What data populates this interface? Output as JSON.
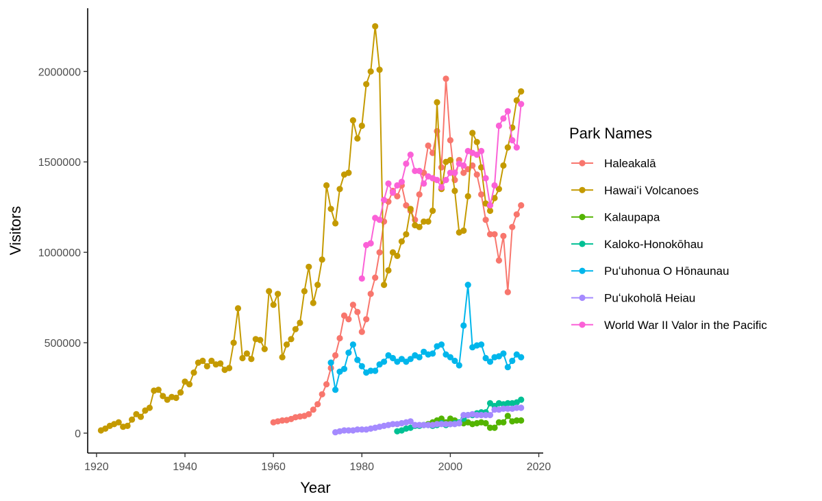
{
  "chart_data": {
    "type": "line",
    "xlabel": "Year",
    "ylabel": "Visitors",
    "xlim": [
      1918,
      2021
    ],
    "ylim": [
      -110000,
      2350000
    ],
    "xticks": [
      "1920",
      "1940",
      "1960",
      "1980",
      "2000",
      "2020"
    ],
    "yticks": [
      "0",
      "500000",
      "1000000",
      "1500000",
      "2000000"
    ],
    "grid": false,
    "legend": {
      "title": "Park Names",
      "position": "right",
      "entries": [
        "Haleakalā",
        "Hawaiʻi Volcanoes",
        "Kalaupapa",
        "Kaloko-Honokōhau",
        "Puʻuhonua O Hōnaunau",
        "Puʻukoholā Heiau",
        "World War II Valor in the Pacific"
      ]
    },
    "series": [
      {
        "name": "Haleakalā",
        "color": "#F8766D",
        "x": [
          1960,
          1961,
          1962,
          1963,
          1964,
          1965,
          1966,
          1967,
          1968,
          1969,
          1970,
          1971,
          1972,
          1973,
          1974,
          1975,
          1976,
          1977,
          1978,
          1979,
          1980,
          1981,
          1982,
          1983,
          1984,
          1985,
          1986,
          1987,
          1988,
          1989,
          1990,
          1991,
          1992,
          1993,
          1994,
          1995,
          1996,
          1997,
          1998,
          1999,
          2000,
          2001,
          2002,
          2003,
          2004,
          2005,
          2006,
          2007,
          2008,
          2009,
          2010,
          2011,
          2012,
          2013,
          2014,
          2015,
          2016
        ],
        "y": [
          60000,
          65000,
          70000,
          72000,
          78000,
          88000,
          92000,
          95000,
          105000,
          130000,
          160000,
          215000,
          270000,
          360000,
          430000,
          525000,
          650000,
          630000,
          710000,
          670000,
          560000,
          630000,
          770000,
          860000,
          1000000,
          1170000,
          1280000,
          1340000,
          1310000,
          1370000,
          1260000,
          1230000,
          1180000,
          1320000,
          1440000,
          1590000,
          1550000,
          1670000,
          1470000,
          1960000,
          1620000,
          1400000,
          1510000,
          1440000,
          1460000,
          1480000,
          1430000,
          1320000,
          1180000,
          1100000,
          1100000,
          955000,
          1090000,
          780000,
          1140000,
          1210000,
          1260000
        ]
      },
      {
        "name": "Hawaiʻi Volcanoes",
        "color": "#C49A00",
        "x": [
          1921,
          1922,
          1923,
          1924,
          1925,
          1926,
          1927,
          1928,
          1929,
          1930,
          1931,
          1932,
          1933,
          1934,
          1935,
          1936,
          1937,
          1938,
          1939,
          1940,
          1941,
          1942,
          1943,
          1944,
          1945,
          1946,
          1947,
          1948,
          1949,
          1950,
          1951,
          1952,
          1953,
          1954,
          1955,
          1956,
          1957,
          1958,
          1959,
          1960,
          1961,
          1962,
          1963,
          1964,
          1965,
          1966,
          1967,
          1968,
          1969,
          1970,
          1971,
          1972,
          1973,
          1974,
          1975,
          1976,
          1977,
          1978,
          1979,
          1980,
          1981,
          1982,
          1983,
          1984,
          1985,
          1986,
          1987,
          1988,
          1989,
          1990,
          1991,
          1992,
          1993,
          1994,
          1995,
          1996,
          1997,
          1998,
          1999,
          2000,
          2001,
          2002,
          2003,
          2004,
          2005,
          2006,
          2007,
          2008,
          2009,
          2010,
          2011,
          2012,
          2013,
          2014,
          2015,
          2016
        ],
        "y": [
          15000,
          25000,
          40000,
          50000,
          60000,
          35000,
          40000,
          75000,
          105000,
          90000,
          125000,
          140000,
          235000,
          240000,
          205000,
          185000,
          200000,
          195000,
          225000,
          285000,
          270000,
          335000,
          390000,
          400000,
          370000,
          400000,
          380000,
          385000,
          350000,
          360000,
          500000,
          690000,
          415000,
          440000,
          410000,
          520000,
          515000,
          465000,
          785000,
          710000,
          770000,
          420000,
          490000,
          520000,
          575000,
          610000,
          785000,
          920000,
          720000,
          820000,
          960000,
          1370000,
          1240000,
          1160000,
          1350000,
          1430000,
          1440000,
          1730000,
          1630000,
          1700000,
          1930000,
          2000000,
          2250000,
          2010000,
          820000,
          900000,
          1000000,
          980000,
          1060000,
          1100000,
          1240000,
          1150000,
          1140000,
          1170000,
          1170000,
          1230000,
          1830000,
          1350000,
          1500000,
          1510000,
          1340000,
          1110000,
          1120000,
          1310000,
          1660000,
          1610000,
          1470000,
          1270000,
          1230000,
          1300000,
          1350000,
          1480000,
          1580000,
          1690000,
          1840000,
          1890000
        ]
      },
      {
        "name": "Kalaupapa",
        "color": "#53B400",
        "x": [
          1994,
          1995,
          1996,
          1997,
          1998,
          1999,
          2000,
          2001,
          2002,
          2003,
          2004,
          2005,
          2006,
          2007,
          2008,
          2009,
          2010,
          2011,
          2012,
          2013,
          2014,
          2015,
          2016
        ],
        "y": [
          45000,
          50000,
          60000,
          70000,
          80000,
          60000,
          80000,
          70000,
          55000,
          55000,
          60000,
          50000,
          55000,
          60000,
          55000,
          30000,
          30000,
          60000,
          60000,
          95000,
          65000,
          70000,
          70000
        ]
      },
      {
        "name": "Kaloko-Honokōhau",
        "color": "#00C094",
        "x": [
          1988,
          1989,
          1990,
          1991,
          1992,
          1993,
          1994,
          1995,
          1996,
          1997,
          1998,
          1999,
          2000,
          2001,
          2002,
          2003,
          2004,
          2005,
          2006,
          2007,
          2008,
          2009,
          2010,
          2011,
          2012,
          2013,
          2014,
          2015,
          2016
        ],
        "y": [
          10000,
          15000,
          25000,
          30000,
          40000,
          40000,
          45000,
          45000,
          40000,
          45000,
          55000,
          45000,
          50000,
          55000,
          60000,
          80000,
          100000,
          100000,
          110000,
          115000,
          115000,
          165000,
          150000,
          165000,
          160000,
          165000,
          165000,
          170000,
          185000
        ]
      },
      {
        "name": "Puʻuhonua O Hōnaunau",
        "color": "#00B6EB",
        "x": [
          1973,
          1974,
          1975,
          1976,
          1977,
          1978,
          1979,
          1980,
          1981,
          1982,
          1983,
          1984,
          1985,
          1986,
          1987,
          1988,
          1989,
          1990,
          1991,
          1992,
          1993,
          1994,
          1995,
          1996,
          1997,
          1998,
          1999,
          2000,
          2001,
          2002,
          2003,
          2004,
          2005,
          2006,
          2007,
          2008,
          2009,
          2010,
          2011,
          2012,
          2013,
          2014,
          2015,
          2016
        ],
        "y": [
          390000,
          240000,
          340000,
          355000,
          445000,
          490000,
          405000,
          370000,
          335000,
          345000,
          345000,
          380000,
          395000,
          430000,
          415000,
          395000,
          410000,
          395000,
          410000,
          430000,
          420000,
          450000,
          435000,
          440000,
          480000,
          490000,
          435000,
          420000,
          400000,
          375000,
          595000,
          820000,
          475000,
          485000,
          490000,
          415000,
          395000,
          420000,
          425000,
          440000,
          365000,
          400000,
          435000,
          420000
        ]
      },
      {
        "name": "Puʻukoholā Heiau",
        "color": "#A58AFF",
        "x": [
          1974,
          1975,
          1976,
          1977,
          1978,
          1979,
          1980,
          1981,
          1982,
          1983,
          1984,
          1985,
          1986,
          1987,
          1988,
          1989,
          1990,
          1991,
          1992,
          1993,
          1994,
          1995,
          1996,
          1997,
          1998,
          1999,
          2000,
          2001,
          2002,
          2003,
          2004,
          2005,
          2006,
          2007,
          2008,
          2009,
          2010,
          2011,
          2012,
          2013,
          2014,
          2015,
          2016
        ],
        "y": [
          5000,
          10000,
          15000,
          15000,
          15000,
          20000,
          20000,
          20000,
          25000,
          30000,
          35000,
          40000,
          45000,
          50000,
          50000,
          55000,
          60000,
          65000,
          45000,
          45000,
          45000,
          45000,
          45000,
          50000,
          50000,
          50000,
          50000,
          50000,
          55000,
          100000,
          100000,
          105000,
          100000,
          100000,
          100000,
          100000,
          130000,
          130000,
          135000,
          135000,
          135000,
          140000,
          140000
        ]
      },
      {
        "name": "World War II Valor in the Pacific",
        "color": "#FB61D7",
        "x": [
          1980,
          1981,
          1982,
          1983,
          1984,
          1985,
          1986,
          1987,
          1988,
          1989,
          1990,
          1991,
          1992,
          1993,
          1994,
          1995,
          1996,
          1997,
          1998,
          1999,
          2000,
          2001,
          2002,
          2003,
          2004,
          2005,
          2006,
          2007,
          2008,
          2009,
          2010,
          2011,
          2012,
          2013,
          2014,
          2015,
          2016
        ],
        "y": [
          855000,
          1040000,
          1050000,
          1190000,
          1180000,
          1290000,
          1380000,
          1330000,
          1370000,
          1390000,
          1490000,
          1540000,
          1450000,
          1450000,
          1380000,
          1420000,
          1410000,
          1400000,
          1360000,
          1400000,
          1440000,
          1440000,
          1490000,
          1480000,
          1560000,
          1550000,
          1540000,
          1560000,
          1410000,
          1260000,
          1370000,
          1700000,
          1740000,
          1780000,
          1620000,
          1580000,
          1820000
        ]
      }
    ]
  }
}
